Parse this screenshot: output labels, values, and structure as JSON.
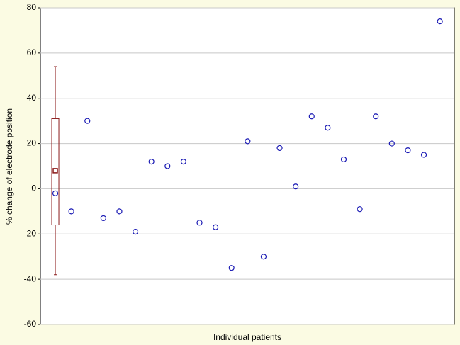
{
  "chart_data": {
    "type": "scatter",
    "x_label": "Individual patients",
    "y_label": "% change of electrode position",
    "x": [
      1,
      2,
      3,
      4,
      5,
      6,
      7,
      8,
      9,
      10,
      11,
      12,
      13,
      14,
      15,
      16,
      17,
      18,
      19,
      20,
      21,
      22,
      23,
      24,
      25
    ],
    "values": [
      -2,
      -10,
      30,
      -13,
      -10,
      -19,
      12,
      10,
      12,
      -15,
      -17,
      -35,
      21,
      -30,
      18,
      1,
      32,
      27,
      13,
      -9,
      32,
      20,
      17,
      15,
      74
    ],
    "color": "#1a1ab4",
    "xlim": [
      0.07,
      25.9
    ],
    "ylim": [
      -60,
      80
    ],
    "yticks": [
      -60,
      -40,
      -20,
      0,
      20,
      40,
      60,
      80
    ],
    "grid": true,
    "box": {
      "color": "#8b1a1a",
      "median": 8,
      "q1": -16,
      "q3": 31,
      "whisker_low": -38,
      "whisker_high": 54
    }
  }
}
